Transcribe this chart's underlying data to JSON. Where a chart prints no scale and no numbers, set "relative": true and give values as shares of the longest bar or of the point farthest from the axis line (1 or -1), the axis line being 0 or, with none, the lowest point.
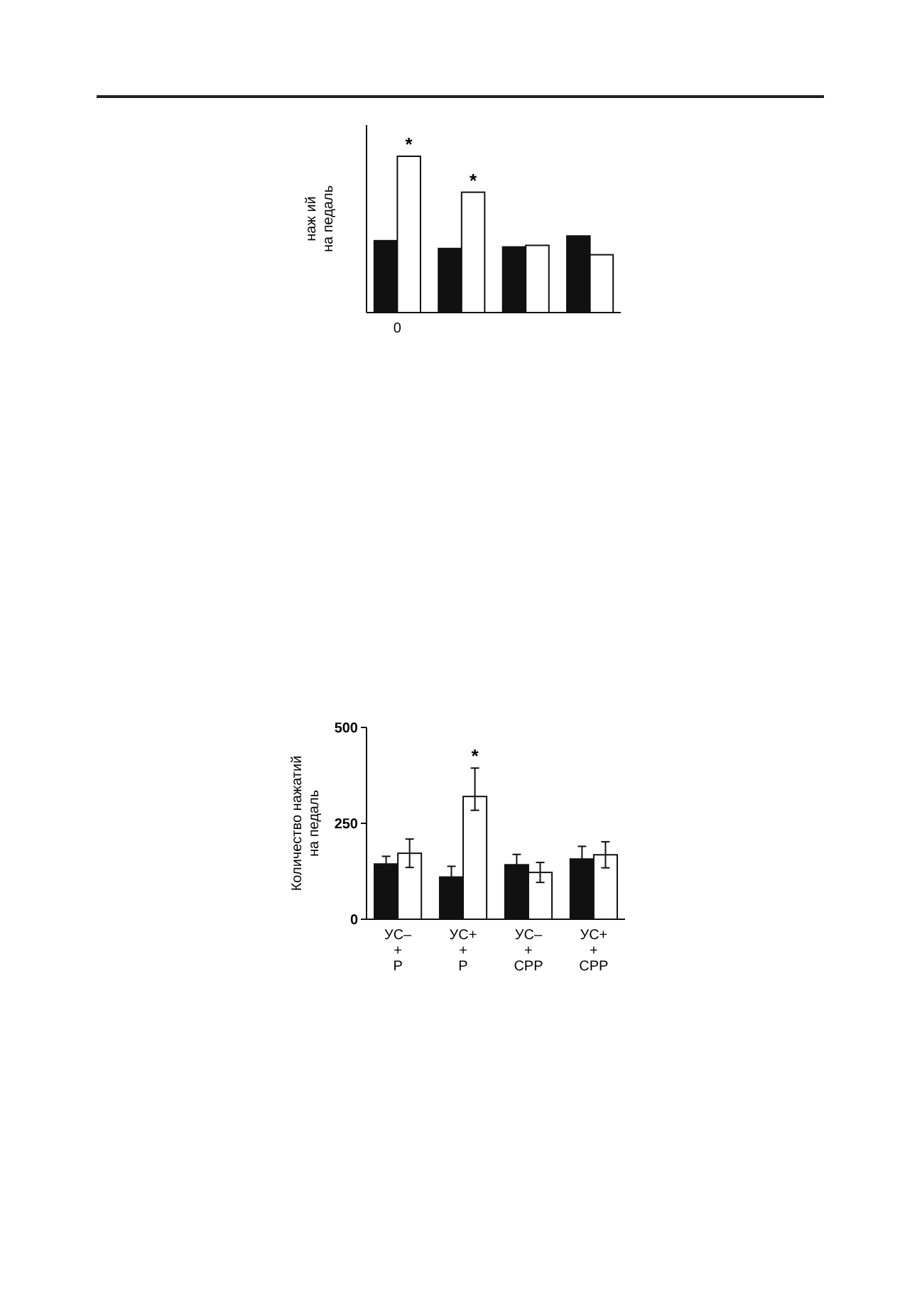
{
  "chart_data": [
    {
      "type": "bar",
      "relative": true,
      "ylabel": "наж ий\nна педаль",
      "categories": [
        "0",
        null,
        null,
        null
      ],
      "series": [
        {
          "color": "#111111",
          "values": [
            0.46,
            0.41,
            0.42,
            0.49
          ]
        },
        {
          "color": "#ffffff",
          "values": [
            1,
            0.77,
            0.43,
            0.37
          ]
        }
      ],
      "annotations": [
        "*",
        "*"
      ]
    },
    {
      "type": "bar",
      "ylabel": "Количество нажатий\nна педаль",
      "categories": [
        "УС–\n+\nP",
        "УС+\n+\nP",
        "УС–\n+\nCPP",
        "УС+\n+\nCPP"
      ],
      "ylim": [
        0,
        500
      ],
      "yticks": [
        0,
        250,
        500
      ],
      "series": [
        {
          "color": "#111111",
          "values": [
            144,
            110,
            142,
            157
          ],
          "errors": [
            20,
            28,
            27,
            33
          ]
        },
        {
          "color": "#ffffff",
          "values": [
            172,
            320,
            122,
            168
          ],
          "errors": [
            37,
            [
              284,
              394
            ],
            26,
            34
          ]
        }
      ],
      "annotations": [
        "*"
      ]
    }
  ]
}
